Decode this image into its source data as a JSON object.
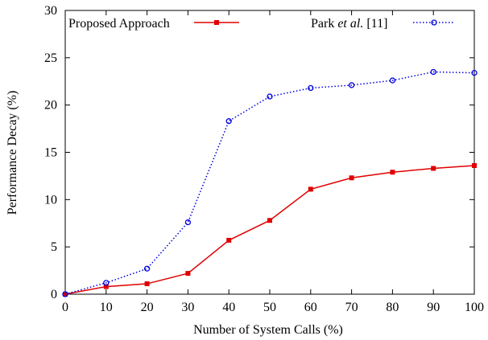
{
  "chart_data": {
    "type": "line",
    "title": "",
    "xlabel": "Number of System Calls (%)",
    "ylabel": "Performance Decay (%)",
    "xlim": [
      0,
      100
    ],
    "ylim": [
      0,
      30
    ],
    "x_ticks": [
      0,
      10,
      20,
      30,
      40,
      50,
      60,
      70,
      80,
      90,
      100
    ],
    "y_ticks": [
      0,
      5,
      10,
      15,
      20,
      25,
      30
    ],
    "grid": false,
    "legend_placement": "top",
    "x": [
      0,
      10,
      20,
      30,
      40,
      50,
      60,
      70,
      80,
      90,
      100
    ],
    "series": [
      {
        "name": "Proposed Approach",
        "color": "#e00000",
        "line_style": "solid",
        "marker": "filled-square",
        "values": [
          0,
          0.8,
          1.1,
          2.2,
          5.7,
          7.8,
          11.1,
          12.3,
          12.9,
          13.3,
          13.6
        ]
      },
      {
        "name_parts": [
          "Park ",
          "et al.",
          " [11]"
        ],
        "color": "#0000e0",
        "line_style": "dotted",
        "marker": "open-circle",
        "values": [
          0,
          1.2,
          2.7,
          7.6,
          18.3,
          20.9,
          21.8,
          22.1,
          22.6,
          23.5,
          23.4
        ]
      }
    ]
  }
}
